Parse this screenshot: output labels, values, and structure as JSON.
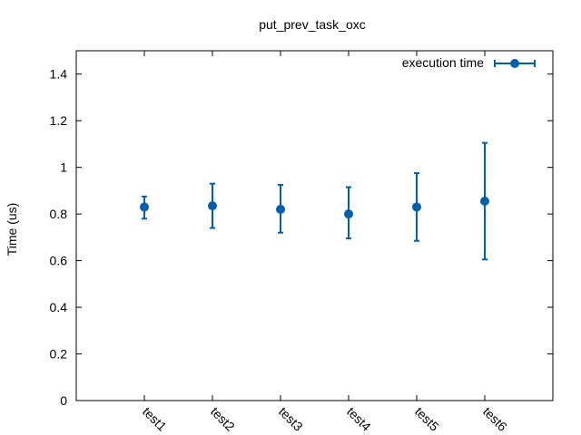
{
  "chart_data": {
    "type": "scatter",
    "title": "put_prev_task_oxc",
    "xlabel": "",
    "ylabel": "Time (us)",
    "ylim": [
      0,
      1.5
    ],
    "yticks": [
      0,
      0.2,
      0.4,
      0.6,
      0.8,
      1,
      1.2,
      1.4
    ],
    "yticklabels": [
      "0",
      "0.2",
      "0.4",
      "0.6",
      "0.8",
      "1",
      "1.2",
      "1.4"
    ],
    "categories": [
      "test1",
      "test2",
      "test3",
      "test4",
      "test5",
      "test6"
    ],
    "series": [
      {
        "name": "execution time",
        "color": "#0060ad",
        "values": [
          0.83,
          0.835,
          0.82,
          0.8,
          0.83,
          0.855
        ],
        "err_low": [
          0.78,
          0.74,
          0.72,
          0.695,
          0.685,
          0.605
        ],
        "err_high": [
          0.875,
          0.93,
          0.925,
          0.915,
          0.975,
          1.105
        ]
      }
    ],
    "grid": false,
    "legend_position": "top-right",
    "error_bars": true
  }
}
